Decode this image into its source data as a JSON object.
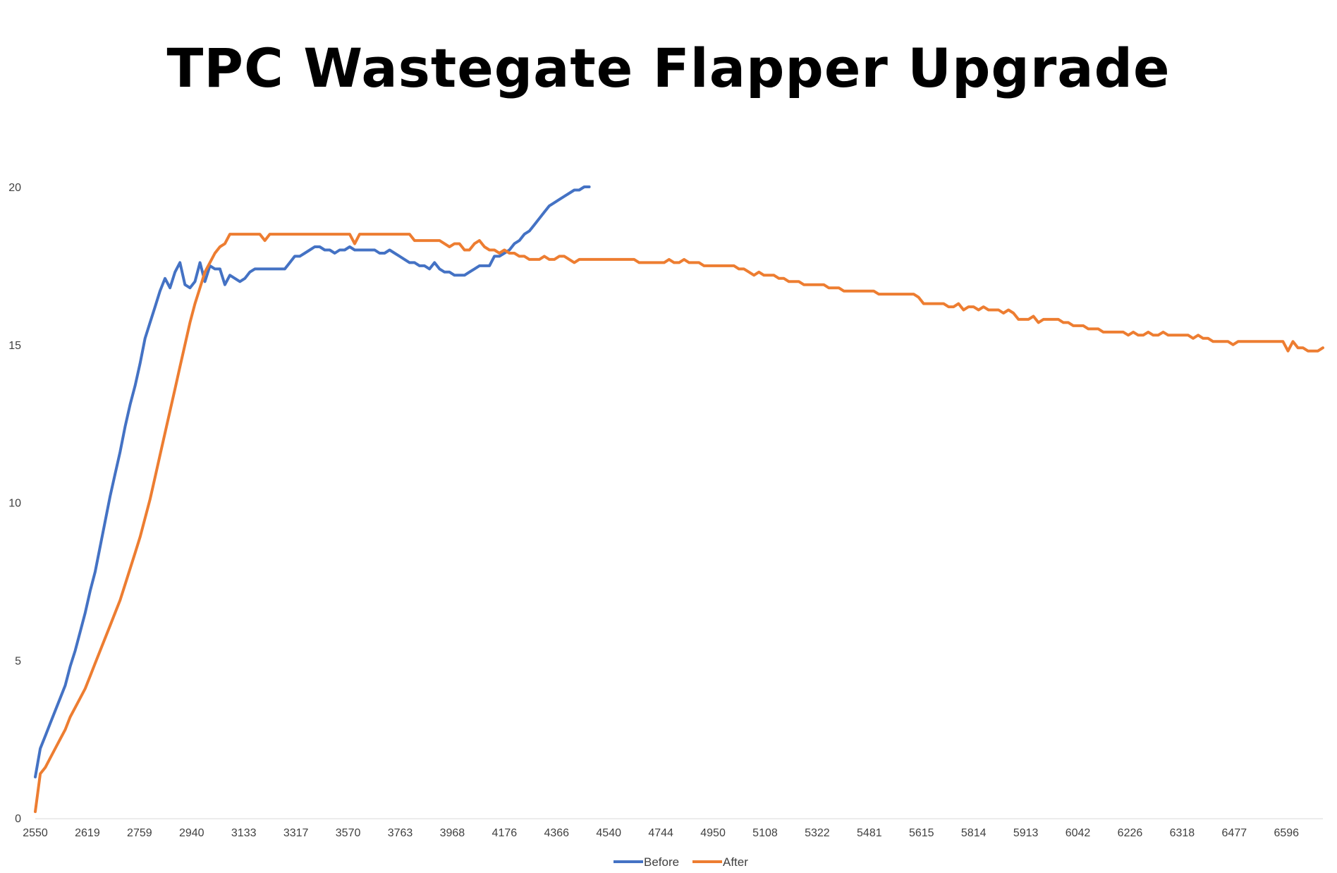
{
  "chart_data": {
    "type": "line",
    "title": "TPC Wastegate Flapper Upgrade",
    "xlabel": "",
    "ylabel": "",
    "ylim": [
      0,
      20
    ],
    "yticks": [
      0,
      5,
      10,
      15,
      20
    ],
    "xticks": [
      "2550",
      "2619",
      "2759",
      "2940",
      "3133",
      "3317",
      "3570",
      "3763",
      "3968",
      "4176",
      "4366",
      "4540",
      "4744",
      "4950",
      "5108",
      "5322",
      "5481",
      "5615",
      "5814",
      "5913",
      "6042",
      "6226",
      "6318",
      "6477",
      "6596"
    ],
    "grid": false,
    "legend": "bottom-center",
    "colors": {
      "Before": "#4472C4",
      "After": "#ED7D31"
    },
    "series": [
      {
        "name": "Before",
        "values": [
          1.3,
          2.2,
          2.6,
          3.0,
          3.4,
          3.8,
          4.2,
          4.8,
          5.3,
          5.9,
          6.5,
          7.2,
          7.8,
          8.6,
          9.4,
          10.2,
          10.9,
          11.6,
          12.4,
          13.1,
          13.7,
          14.4,
          15.2,
          15.7,
          16.2,
          16.7,
          17.1,
          16.8,
          17.3,
          17.6,
          16.9,
          16.8,
          17.0,
          17.6,
          17.0,
          17.5,
          17.4,
          17.4,
          16.9,
          17.2,
          17.1,
          17.0,
          17.1,
          17.3,
          17.4,
          17.4,
          17.4,
          17.4,
          17.4,
          17.4,
          17.4,
          17.6,
          17.8,
          17.8,
          17.9,
          18.0,
          18.1,
          18.1,
          18.0,
          18.0,
          17.9,
          18.0,
          18.0,
          18.1,
          18.0,
          18.0,
          18.0,
          18.0,
          18.0,
          17.9,
          17.9,
          18.0,
          17.9,
          17.8,
          17.7,
          17.6,
          17.6,
          17.5,
          17.5,
          17.4,
          17.6,
          17.4,
          17.3,
          17.3,
          17.2,
          17.2,
          17.2,
          17.3,
          17.4,
          17.5,
          17.5,
          17.5,
          17.8,
          17.8,
          17.9,
          18.0,
          18.2,
          18.3,
          18.5,
          18.6,
          18.8,
          19.0,
          19.2,
          19.4,
          19.5,
          19.6,
          19.7,
          19.8,
          19.9,
          19.9,
          20.0,
          20.0
        ]
      },
      {
        "name": "After",
        "values": [
          0.2,
          1.4,
          1.6,
          1.9,
          2.2,
          2.5,
          2.8,
          3.2,
          3.5,
          3.8,
          4.1,
          4.5,
          4.9,
          5.3,
          5.7,
          6.1,
          6.5,
          6.9,
          7.4,
          7.9,
          8.4,
          8.9,
          9.5,
          10.1,
          10.8,
          11.5,
          12.2,
          12.9,
          13.6,
          14.3,
          15.0,
          15.7,
          16.3,
          16.8,
          17.3,
          17.6,
          17.9,
          18.1,
          18.2,
          18.5,
          18.5,
          18.5,
          18.5,
          18.5,
          18.5,
          18.5,
          18.3,
          18.5,
          18.5,
          18.5,
          18.5,
          18.5,
          18.5,
          18.5,
          18.5,
          18.5,
          18.5,
          18.5,
          18.5,
          18.5,
          18.5,
          18.5,
          18.5,
          18.5,
          18.2,
          18.5,
          18.5,
          18.5,
          18.5,
          18.5,
          18.5,
          18.5,
          18.5,
          18.5,
          18.5,
          18.5,
          18.3,
          18.3,
          18.3,
          18.3,
          18.3,
          18.3,
          18.2,
          18.1,
          18.2,
          18.2,
          18.0,
          18.0,
          18.2,
          18.3,
          18.1,
          18.0,
          18.0,
          17.9,
          18.0,
          17.9,
          17.9,
          17.8,
          17.8,
          17.7,
          17.7,
          17.7,
          17.8,
          17.7,
          17.7,
          17.8,
          17.8,
          17.7,
          17.6,
          17.7,
          17.7,
          17.7,
          17.7,
          17.7,
          17.7,
          17.7,
          17.7,
          17.7,
          17.7,
          17.7,
          17.7,
          17.6,
          17.6,
          17.6,
          17.6,
          17.6,
          17.6,
          17.7,
          17.6,
          17.6,
          17.7,
          17.6,
          17.6,
          17.6,
          17.5,
          17.5,
          17.5,
          17.5,
          17.5,
          17.5,
          17.5,
          17.4,
          17.4,
          17.3,
          17.2,
          17.3,
          17.2,
          17.2,
          17.2,
          17.1,
          17.1,
          17.0,
          17.0,
          17.0,
          16.9,
          16.9,
          16.9,
          16.9,
          16.9,
          16.8,
          16.8,
          16.8,
          16.7,
          16.7,
          16.7,
          16.7,
          16.7,
          16.7,
          16.7,
          16.6,
          16.6,
          16.6,
          16.6,
          16.6,
          16.6,
          16.6,
          16.6,
          16.5,
          16.3,
          16.3,
          16.3,
          16.3,
          16.3,
          16.2,
          16.2,
          16.3,
          16.1,
          16.2,
          16.2,
          16.1,
          16.2,
          16.1,
          16.1,
          16.1,
          16.0,
          16.1,
          16.0,
          15.8,
          15.8,
          15.8,
          15.9,
          15.7,
          15.8,
          15.8,
          15.8,
          15.8,
          15.7,
          15.7,
          15.6,
          15.6,
          15.6,
          15.5,
          15.5,
          15.5,
          15.4,
          15.4,
          15.4,
          15.4,
          15.4,
          15.3,
          15.4,
          15.3,
          15.3,
          15.4,
          15.3,
          15.3,
          15.4,
          15.3,
          15.3,
          15.3,
          15.3,
          15.3,
          15.2,
          15.3,
          15.2,
          15.2,
          15.1,
          15.1,
          15.1,
          15.1,
          15.0,
          15.1,
          15.1,
          15.1,
          15.1,
          15.1,
          15.1,
          15.1,
          15.1,
          15.1,
          15.1,
          14.8,
          15.1,
          14.9,
          14.9,
          14.8,
          14.8,
          14.8,
          14.9
        ]
      }
    ]
  }
}
